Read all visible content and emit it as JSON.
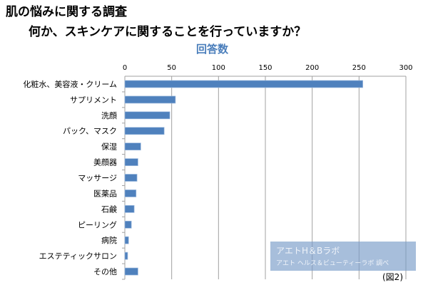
{
  "title_line1": "肌の悩みに関する調査",
  "title_line2": "何か、スキンケアに関することを行っていますか？",
  "watermark": {
    "line1": "アエトH＆Bラボ",
    "line2": "アエト ヘルス＆ビューティーラボ 調べ"
  },
  "figure_label": "(図2)",
  "colors": {
    "bar": "#4f81bd",
    "title_sub": "#4a7ebb",
    "grid": "#a0a0a0"
  },
  "chart_data": {
    "type": "bar",
    "orientation": "horizontal",
    "title": "回答数",
    "categories": [
      "化粧水、美容液・クリーム",
      "サプリメント",
      "洗顔",
      "パック、マスク",
      "保湿",
      "美顔器",
      "マッサージ",
      "医薬品",
      "石鹸",
      "ピーリング",
      "病院",
      "エステティックサロン",
      "その他"
    ],
    "values": [
      254,
      54,
      48,
      42,
      17,
      14,
      13,
      12,
      10,
      7,
      4,
      3,
      14
    ],
    "xlim": [
      0,
      300
    ],
    "xticks": [
      "0",
      "50",
      "100",
      "150",
      "200",
      "250",
      "300"
    ],
    "xaxis_position": "top",
    "grid": true
  }
}
